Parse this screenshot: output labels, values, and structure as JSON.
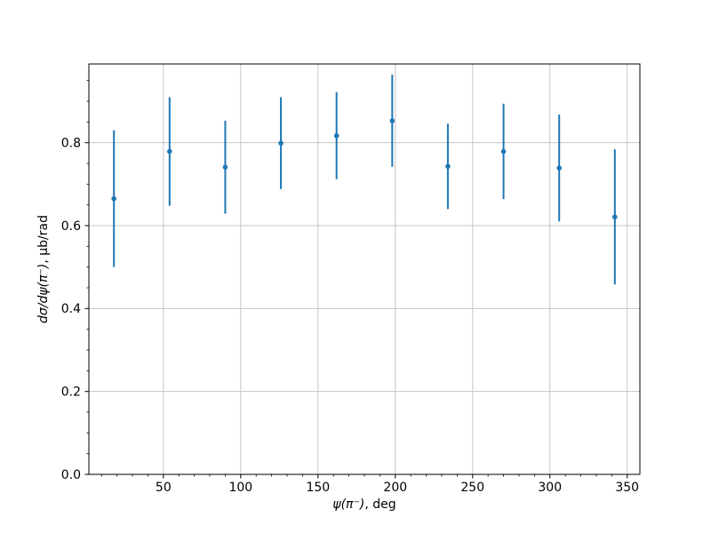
{
  "chart_data": {
    "type": "scatter",
    "subtype": "errorbar",
    "title": "",
    "xlabel": "ψ(π⁻), deg",
    "ylabel": "dσ/dψ(π⁻), μb/rad",
    "x": [
      18,
      54,
      90,
      126,
      162,
      198,
      234,
      270,
      306,
      342
    ],
    "y": [
      0.665,
      0.779,
      0.741,
      0.799,
      0.817,
      0.853,
      0.743,
      0.779,
      0.739,
      0.621
    ],
    "yerr": [
      0.165,
      0.131,
      0.112,
      0.111,
      0.105,
      0.111,
      0.103,
      0.115,
      0.129,
      0.163
    ],
    "xlim": [
      1.8,
      358.2
    ],
    "ylim": [
      0,
      0.99
    ],
    "xticks": [
      50,
      100,
      150,
      200,
      250,
      300,
      350
    ],
    "yticks": [
      0.0,
      0.2,
      0.4,
      0.6,
      0.8
    ],
    "x_minor_step": 10,
    "y_minor_step": 0.05,
    "grid": true,
    "legend": false,
    "marker_color": "#1f77b4",
    "grid_color": "#c6c6c6",
    "spine_color": "#000000"
  },
  "labels": {
    "x_math": "ψ(π⁻)",
    "x_unit": ", deg",
    "y_math": "dσ/dψ(π⁻)",
    "y_unit": ", μb/rad"
  }
}
